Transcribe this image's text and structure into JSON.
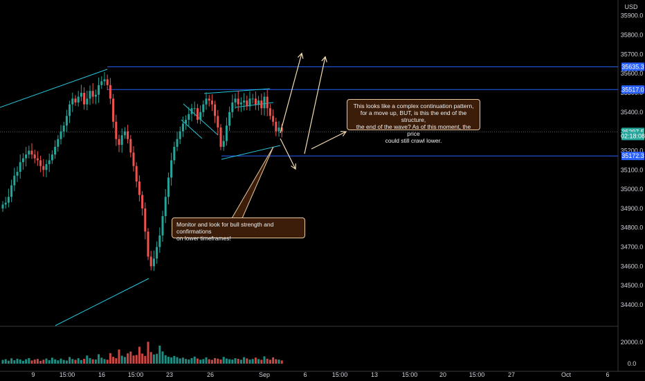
{
  "currency": "USD",
  "price_axis": {
    "ticks": [
      "35900.0",
      "35800.0",
      "35700.0",
      "35600.0",
      "35500.0",
      "35400.0",
      "35300.0",
      "35200.0",
      "35100.0",
      "35000.0",
      "34900.0",
      "34800.0",
      "34700.0",
      "34600.0",
      "34500.0",
      "34400.0"
    ],
    "tick_values": [
      35900,
      35800,
      35700,
      35600,
      35500,
      35400,
      35300,
      35200,
      35100,
      35000,
      34900,
      34800,
      34700,
      34600,
      34500,
      34400
    ]
  },
  "price_labels": [
    {
      "text": "35635.3",
      "value": 35635.3,
      "color": "#2962ff"
    },
    {
      "text": "35517.0",
      "value": 35517.0,
      "color": "#2962ff"
    },
    {
      "text": "35297.5",
      "value": 35297.5,
      "color": "#26a69a"
    },
    {
      "text": "02:18:08",
      "value": 35276,
      "color": "#26a69a"
    },
    {
      "text": "35172.3",
      "value": 35172.3,
      "color": "#2962ff"
    }
  ],
  "volume_axis": {
    "ticks": [
      "20000.0",
      "0.0"
    ],
    "tick_values": [
      20000,
      0
    ]
  },
  "time_axis": {
    "ticks": [
      "9",
      "15:00",
      "16",
      "15:00",
      "23",
      "26",
      "Sep",
      "6",
      "15:00",
      "13",
      "15:00",
      "20",
      "15:00",
      "27",
      "Oct",
      "6"
    ]
  },
  "annotations": {
    "callout_1": "This looks like a complex continuation pattern,\nfor a move up, BUT, is this the end of the structure,\nthe end of the wave? As of this moment, the price\ncould still crawl lower.",
    "callout_2": "Monitor and look for bull strength and confirmations\non lower timeframes!"
  },
  "colors": {
    "up": "#26a69a",
    "down": "#ef5350",
    "hline": "#2962ff",
    "trend": "#26c6da",
    "arrow": "#f5deb3",
    "text": "#d1d4dc"
  },
  "chart_data": {
    "type": "candlestick",
    "symbol_currency": "USD",
    "y_range": [
      34350,
      35980
    ],
    "horizontal_levels": [
      35635.3,
      35517.0,
      35172.3
    ],
    "last_price": 35297.5,
    "series": [
      {
        "name": "price",
        "values": [
          34920,
          34930,
          34960,
          35020,
          35070,
          35090,
          35140,
          35160,
          35180,
          35200,
          35180,
          35160,
          35150,
          35120,
          35100,
          35130,
          35150,
          35180,
          35220,
          35260,
          35300,
          35330,
          35380,
          35440,
          35470,
          35450,
          35480,
          35500,
          35440,
          35470,
          35510,
          35480,
          35490,
          35540,
          35560,
          35570,
          35540,
          35470,
          35350,
          35260,
          35230,
          35280,
          35300,
          35260,
          35190,
          35120,
          35040,
          34970,
          34900,
          34780,
          34650,
          34600,
          34640,
          34700,
          34760,
          34860,
          34960,
          35060,
          35150,
          35220,
          35260,
          35300,
          35340,
          35360,
          35390,
          35420,
          35420,
          35360,
          35400,
          35440,
          35470,
          35460,
          35440,
          35380,
          35320,
          35220,
          35250,
          35330,
          35400,
          35450,
          35470,
          35440,
          35450,
          35460,
          35430,
          35470,
          35470,
          35440,
          35460,
          35420,
          35480,
          35420,
          35380,
          35350,
          35300,
          35320,
          35300
        ]
      }
    ],
    "volume": {
      "max_label": 20000,
      "values": [
        3500,
        4200,
        2800,
        5000,
        3200,
        4600,
        3900,
        2700,
        4100,
        5200,
        3000,
        3800,
        4400,
        2600,
        3700,
        4800,
        3300,
        5600,
        4000,
        3100,
        4700,
        3500,
        2900,
        6200,
        4300,
        3600,
        5100,
        3400,
        4500,
        7600,
        5200,
        4100,
        3900,
        8800,
        5600,
        4300,
        3700,
        9800,
        6400,
        5100,
        13200,
        7400,
        6200,
        9600,
        11300,
        7600,
        8100,
        15800,
        9400,
        7200,
        20400,
        10800,
        8600,
        9200,
        16800,
        11400,
        7800,
        6400,
        5800,
        7200,
        6100,
        4900,
        5600,
        4400,
        3900,
        5200,
        6600,
        4800,
        3700,
        4300,
        5900,
        4100,
        3600,
        5200,
        4700,
        3900,
        6300,
        4800,
        4200,
        3800,
        5100,
        4500,
        3700,
        6100,
        4900,
        3800,
        4400,
        5700,
        4300,
        3600,
        6800,
        4600,
        3700,
        5900,
        4200,
        3800,
        3000
      ]
    },
    "trendlines_count": 7,
    "arrows": [
      "up",
      "up",
      "down",
      "down"
    ]
  }
}
